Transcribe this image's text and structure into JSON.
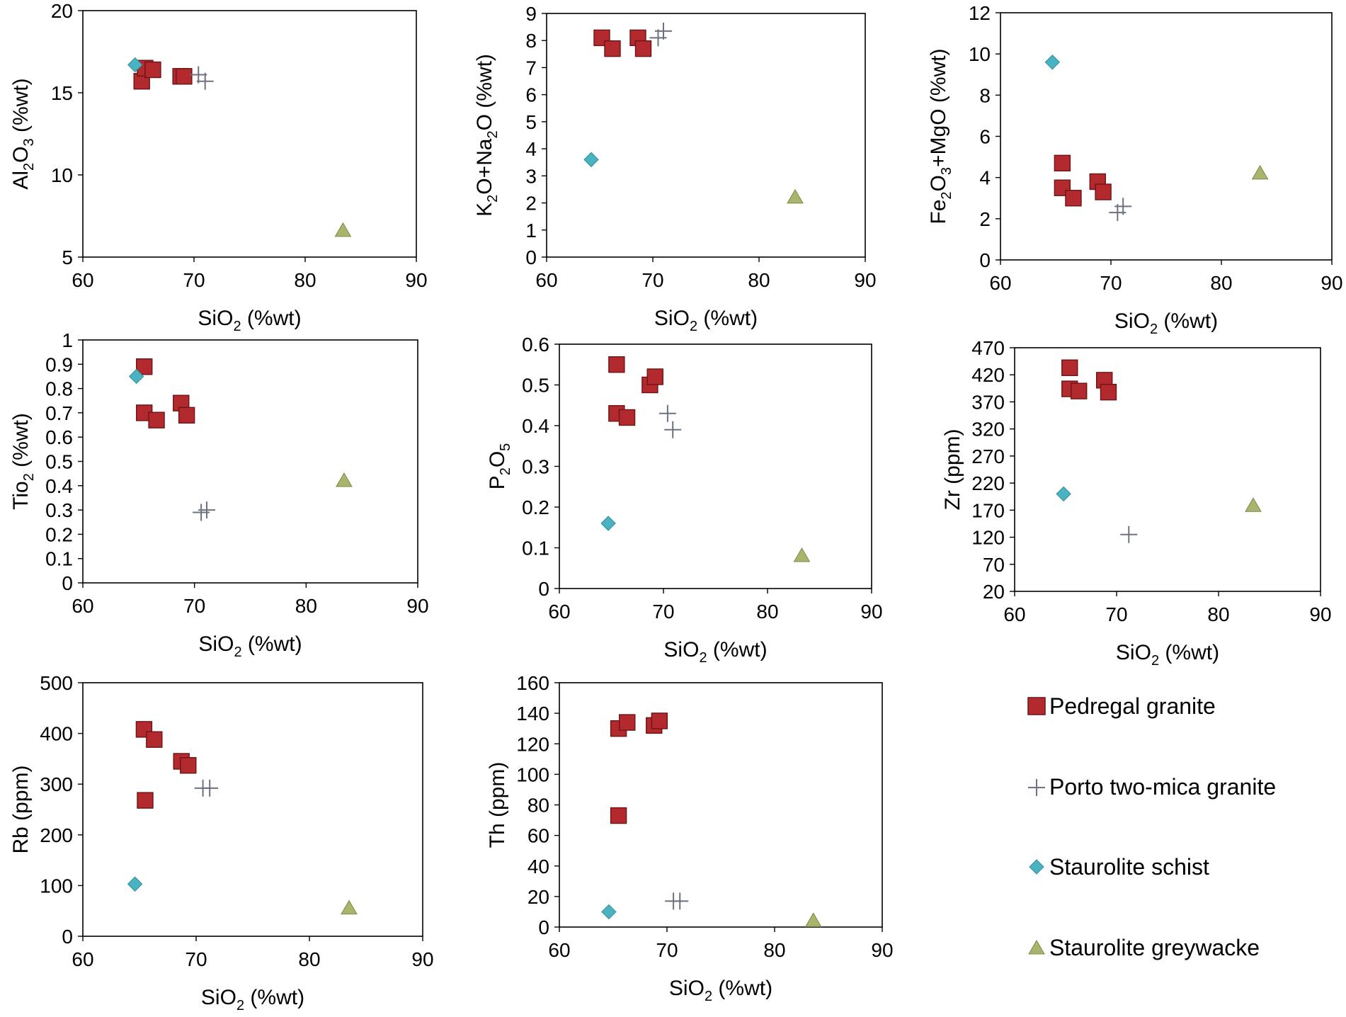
{
  "colors": {
    "pedregal": "#b22a2e",
    "pedregal_stroke": "#6e1416",
    "porto": "#6d7280",
    "schist": "#4ab3c1",
    "schist_stroke": "#2f8e9a",
    "greywacke": "#a9b56c",
    "greywacke_stroke": "#7d8a45"
  },
  "legend": {
    "items": [
      {
        "name": "Pedregal granite",
        "marker": "square",
        "color_key": "pedregal"
      },
      {
        "name": "Porto two-mica granite",
        "marker": "plus",
        "color_key": "porto"
      },
      {
        "name": "Staurolite schist",
        "marker": "diamond",
        "color_key": "schist"
      },
      {
        "name": "Staurolite greywacke",
        "marker": "triangle",
        "color_key": "greywacke"
      }
    ]
  },
  "chart_data": [
    {
      "type": "scatter",
      "xlabel": {
        "base": "SiO",
        "sub": "2",
        "rest": " (%wt)"
      },
      "ylabel_parts": [
        [
          "Al",
          false
        ],
        [
          "2",
          true
        ],
        [
          "O",
          false
        ],
        [
          "3",
          true
        ],
        [
          " (%wt)",
          false
        ]
      ],
      "xlim": [
        60,
        90
      ],
      "xticks": [
        60,
        70,
        80,
        90
      ],
      "ylim": [
        5,
        20
      ],
      "yticks": [
        5,
        10,
        15,
        20
      ],
      "series": [
        {
          "name": "Pedregal granite",
          "marker": "square",
          "points": [
            [
              65.3,
              15.7
            ],
            [
              65.6,
              16.5
            ],
            [
              66.3,
              16.4
            ],
            [
              68.8,
              16.0
            ],
            [
              69.1,
              16.0
            ]
          ]
        },
        {
          "name": "Porto two-mica granite",
          "marker": "plus",
          "points": [
            [
              70.4,
              16.1
            ],
            [
              71.0,
              15.7
            ]
          ]
        },
        {
          "name": "Staurolite schist",
          "marker": "diamond",
          "points": [
            [
              64.7,
              16.7
            ]
          ]
        },
        {
          "name": "Staurolite greywacke",
          "marker": "triangle",
          "points": [
            [
              83.4,
              6.6
            ]
          ]
        }
      ]
    },
    {
      "type": "scatter",
      "xlabel": {
        "base": "SiO",
        "sub": "2",
        "rest": " (%wt)"
      },
      "ylabel_parts": [
        [
          "K",
          false
        ],
        [
          "2",
          true
        ],
        [
          "O+Na",
          false
        ],
        [
          "2",
          true
        ],
        [
          "O (%wt)",
          false
        ]
      ],
      "xlim": [
        60,
        90
      ],
      "xticks": [
        60,
        70,
        80,
        90
      ],
      "ylim": [
        0,
        9
      ],
      "yticks": [
        0,
        1,
        2,
        3,
        4,
        5,
        6,
        7,
        8,
        9
      ],
      "series": [
        {
          "name": "Pedregal granite",
          "marker": "square",
          "points": [
            [
              65.2,
              8.1
            ],
            [
              66.2,
              7.7
            ],
            [
              68.6,
              8.1
            ],
            [
              69.1,
              7.7
            ]
          ]
        },
        {
          "name": "Porto two-mica granite",
          "marker": "plus",
          "points": [
            [
              70.5,
              8.1
            ],
            [
              71.0,
              8.35
            ]
          ]
        },
        {
          "name": "Staurolite schist",
          "marker": "diamond",
          "points": [
            [
              64.2,
              3.6
            ]
          ]
        },
        {
          "name": "Staurolite greywacke",
          "marker": "triangle",
          "points": [
            [
              83.4,
              2.2
            ]
          ]
        }
      ]
    },
    {
      "type": "scatter",
      "xlabel": {
        "base": "SiO",
        "sub": "2",
        "rest": " (%wt)"
      },
      "ylabel_parts": [
        [
          "Fe",
          false
        ],
        [
          "2",
          true
        ],
        [
          "O",
          false
        ],
        [
          "3",
          true
        ],
        [
          "+MgO (%wt)",
          false
        ]
      ],
      "xlim": [
        60,
        90
      ],
      "xticks": [
        60,
        70,
        80,
        90
      ],
      "ylim": [
        0,
        12
      ],
      "yticks": [
        0,
        2,
        4,
        6,
        8,
        10,
        12
      ],
      "series": [
        {
          "name": "Pedregal granite",
          "marker": "square",
          "points": [
            [
              65.6,
              4.7
            ],
            [
              65.6,
              3.5
            ],
            [
              66.6,
              3.0
            ],
            [
              68.8,
              3.8
            ],
            [
              69.3,
              3.3
            ]
          ]
        },
        {
          "name": "Porto two-mica granite",
          "marker": "plus",
          "points": [
            [
              70.6,
              2.3
            ],
            [
              71.1,
              2.6
            ]
          ]
        },
        {
          "name": "Staurolite schist",
          "marker": "diamond",
          "points": [
            [
              64.7,
              9.6
            ]
          ]
        },
        {
          "name": "Staurolite greywacke",
          "marker": "triangle",
          "points": [
            [
              83.5,
              4.2
            ]
          ]
        }
      ]
    },
    {
      "type": "scatter",
      "xlabel": {
        "base": "SiO",
        "sub": "2",
        "rest": " (%wt)"
      },
      "ylabel_parts": [
        [
          "Tio",
          false
        ],
        [
          "2",
          true
        ],
        [
          " (%wt)",
          false
        ]
      ],
      "xlim": [
        60,
        90
      ],
      "xticks": [
        60,
        70,
        80,
        90
      ],
      "ylim": [
        0,
        1
      ],
      "yticks": [
        0,
        0.1,
        0.2,
        0.3,
        0.4,
        0.5,
        0.6,
        0.7,
        0.8,
        0.9,
        1
      ],
      "series": [
        {
          "name": "Pedregal granite",
          "marker": "square",
          "points": [
            [
              65.5,
              0.89
            ],
            [
              65.5,
              0.7
            ],
            [
              66.6,
              0.67
            ],
            [
              68.8,
              0.74
            ],
            [
              69.3,
              0.69
            ]
          ]
        },
        {
          "name": "Porto two-mica granite",
          "marker": "plus",
          "points": [
            [
              70.6,
              0.29
            ],
            [
              71.1,
              0.3
            ]
          ]
        },
        {
          "name": "Staurolite schist",
          "marker": "diamond",
          "points": [
            [
              64.8,
              0.85
            ]
          ]
        },
        {
          "name": "Staurolite greywacke",
          "marker": "triangle",
          "points": [
            [
              83.4,
              0.42
            ]
          ]
        }
      ]
    },
    {
      "type": "scatter",
      "xlabel": {
        "base": "SiO",
        "sub": "2",
        "rest": " (%wt)"
      },
      "ylabel_parts": [
        [
          "P",
          false
        ],
        [
          "2",
          true
        ],
        [
          "O",
          false
        ],
        [
          "5",
          true
        ]
      ],
      "xlim": [
        60,
        90
      ],
      "xticks": [
        60,
        70,
        80,
        90
      ],
      "ylim": [
        0,
        0.6
      ],
      "yticks": [
        0,
        0.1,
        0.2,
        0.3,
        0.4,
        0.5,
        0.6
      ],
      "series": [
        {
          "name": "Pedregal granite",
          "marker": "square",
          "points": [
            [
              65.5,
              0.55
            ],
            [
              65.5,
              0.43
            ],
            [
              66.5,
              0.42
            ],
            [
              68.7,
              0.5
            ],
            [
              69.2,
              0.52
            ]
          ]
        },
        {
          "name": "Porto two-mica granite",
          "marker": "plus",
          "points": [
            [
              70.4,
              0.43
            ],
            [
              70.9,
              0.39
            ]
          ]
        },
        {
          "name": "Staurolite schist",
          "marker": "diamond",
          "points": [
            [
              64.7,
              0.16
            ]
          ]
        },
        {
          "name": "Staurolite greywacke",
          "marker": "triangle",
          "points": [
            [
              83.3,
              0.08
            ]
          ]
        }
      ]
    },
    {
      "type": "scatter",
      "xlabel": {
        "base": "SiO",
        "sub": "2",
        "rest": " (%wt)"
      },
      "ylabel_parts": [
        [
          "Zr (ppm)",
          false
        ]
      ],
      "xlim": [
        60,
        90
      ],
      "xticks": [
        60,
        70,
        80,
        90
      ],
      "ylim": [
        20,
        470
      ],
      "yticks": [
        20,
        70,
        120,
        170,
        220,
        270,
        320,
        370,
        420,
        470
      ],
      "series": [
        {
          "name": "Pedregal granite",
          "marker": "square",
          "points": [
            [
              65.4,
              433
            ],
            [
              65.4,
              394
            ],
            [
              66.3,
              390
            ],
            [
              68.8,
              410
            ],
            [
              69.2,
              388
            ]
          ]
        },
        {
          "name": "Porto two-mica granite",
          "marker": "plus",
          "points": [
            [
              71.2,
              125
            ]
          ]
        },
        {
          "name": "Staurolite schist",
          "marker": "diamond",
          "points": [
            [
              64.8,
              200
            ]
          ]
        },
        {
          "name": "Staurolite greywacke",
          "marker": "triangle",
          "points": [
            [
              83.4,
              178
            ]
          ]
        }
      ]
    },
    {
      "type": "scatter",
      "xlabel": {
        "base": "SiO",
        "sub": "2",
        "rest": " (%wt)"
      },
      "ylabel_parts": [
        [
          "Rb (ppm)",
          false
        ]
      ],
      "xlim": [
        60,
        90
      ],
      "xticks": [
        60,
        70,
        80,
        90
      ],
      "ylim": [
        0,
        500
      ],
      "yticks": [
        0,
        100,
        200,
        300,
        400,
        500
      ],
      "series": [
        {
          "name": "Pedregal granite",
          "marker": "square",
          "points": [
            [
              65.4,
              408
            ],
            [
              65.5,
              268
            ],
            [
              66.3,
              388
            ],
            [
              68.7,
              345
            ],
            [
              69.3,
              337
            ]
          ]
        },
        {
          "name": "Porto two-mica granite",
          "marker": "plus",
          "points": [
            [
              70.6,
              292
            ],
            [
              71.2,
              292
            ]
          ]
        },
        {
          "name": "Staurolite schist",
          "marker": "diamond",
          "points": [
            [
              64.6,
              103
            ]
          ]
        },
        {
          "name": "Staurolite greywacke",
          "marker": "triangle",
          "points": [
            [
              83.5,
              55
            ]
          ]
        }
      ]
    },
    {
      "type": "scatter",
      "xlabel": {
        "base": "SiO",
        "sub": "2",
        "rest": " (%wt)"
      },
      "ylabel_parts": [
        [
          "Th (ppm)",
          false
        ]
      ],
      "xlim": [
        60,
        90
      ],
      "xticks": [
        60,
        70,
        80,
        90
      ],
      "ylim": [
        0,
        160
      ],
      "yticks": [
        0,
        20,
        40,
        60,
        80,
        100,
        120,
        140,
        160
      ],
      "series": [
        {
          "name": "Pedregal granite",
          "marker": "square",
          "points": [
            [
              65.5,
              130
            ],
            [
              65.5,
              73
            ],
            [
              66.3,
              134
            ],
            [
              68.8,
              132
            ],
            [
              69.3,
              135
            ]
          ]
        },
        {
          "name": "Porto two-mica granite",
          "marker": "plus",
          "points": [
            [
              70.6,
              17
            ],
            [
              71.2,
              17
            ]
          ]
        },
        {
          "name": "Staurolite schist",
          "marker": "diamond",
          "points": [
            [
              64.6,
              10
            ]
          ]
        },
        {
          "name": "Staurolite greywacke",
          "marker": "triangle",
          "points": [
            [
              83.6,
              4
            ]
          ]
        }
      ]
    }
  ]
}
